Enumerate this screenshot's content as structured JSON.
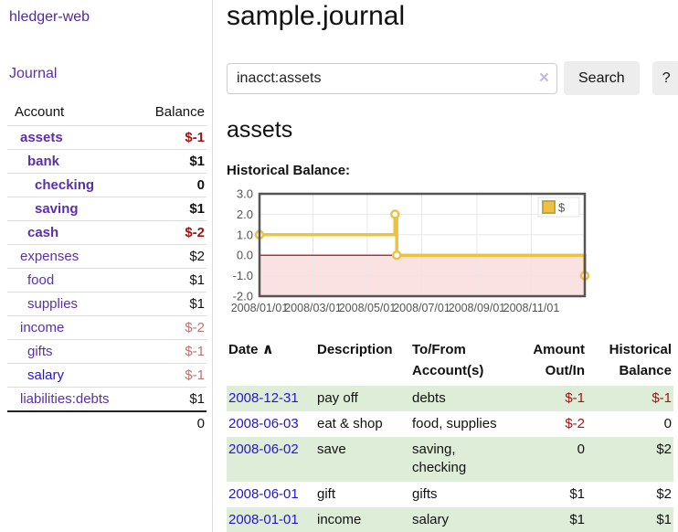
{
  "app": {
    "brand": "hledger-web"
  },
  "sidebar": {
    "journal_link": "Journal",
    "accounts": {
      "header_account": "Account",
      "header_balance": "Balance",
      "rows": [
        {
          "name": "assets",
          "balance": "$-1"
        },
        {
          "name": "bank",
          "balance": "$1"
        },
        {
          "name": "checking",
          "balance": "0"
        },
        {
          "name": "saving",
          "balance": "$1"
        },
        {
          "name": "cash",
          "balance": "$-2"
        },
        {
          "name": "expenses",
          "balance": "$2"
        },
        {
          "name": "food",
          "balance": "$1"
        },
        {
          "name": "supplies",
          "balance": "$1"
        },
        {
          "name": "income",
          "balance": "$-2"
        },
        {
          "name": "gifts",
          "balance": "$-1"
        },
        {
          "name": "salary",
          "balance": "$-1"
        },
        {
          "name": "liabilities:debts",
          "balance": "$1"
        }
      ],
      "total": "0"
    }
  },
  "main": {
    "title": "sample.journal",
    "search": {
      "value": "inacct:assets",
      "clear_icon": "×",
      "search_button": "Search",
      "help_button": "?"
    },
    "account_heading": "assets",
    "chart_heading": "Historical Balance:"
  },
  "chart_data": {
    "type": "line",
    "title": "Historical Balance",
    "step": true,
    "series": [
      {
        "name": "$",
        "color": "#edc240",
        "points": [
          {
            "date": "2008-01-01",
            "x_days": 0,
            "y": 1
          },
          {
            "date": "2008-06-01",
            "x_days": 152,
            "y": 2
          },
          {
            "date": "2008-06-03",
            "x_days": 154,
            "y": 0
          },
          {
            "date": "2008-12-31",
            "x_days": 365,
            "y": -1
          }
        ]
      }
    ],
    "x_range_days": [
      0,
      365
    ],
    "ylim": [
      -2,
      3
    ],
    "y_ticks": [
      "3.0",
      "2.0",
      "1.0",
      "0.0",
      "-1.0",
      "-2.0"
    ],
    "x_ticks": [
      {
        "label": "2008/01/01",
        "x_days": 0
      },
      {
        "label": "2008/03/01",
        "x_days": 60
      },
      {
        "label": "2008/05/01",
        "x_days": 121
      },
      {
        "label": "2008/07/01",
        "x_days": 182
      },
      {
        "label": "2008/09/01",
        "x_days": 244
      },
      {
        "label": "2008/11/01",
        "x_days": 305
      }
    ],
    "legend": {
      "label": "$",
      "swatch_color": "#edc240",
      "position": "top-right"
    },
    "grid": true,
    "colors": {
      "border": "#545454",
      "grid": "#e7e7e7",
      "negative_region": "#fae2e3",
      "zero_line": "#8b0000",
      "tick_text": "#545454"
    }
  },
  "transactions": {
    "sort_icon": "∧",
    "headers": {
      "date": "Date",
      "description": "Description",
      "accounts": "To/From Account(s)",
      "amount": "Amount Out/In",
      "balance": "Historical Balance"
    },
    "rows": [
      {
        "date": "2008-12-31",
        "description": "pay off",
        "accounts": "debts",
        "amount": "$-1",
        "balance": "$-1"
      },
      {
        "date": "2008-06-03",
        "description": "eat & shop",
        "accounts": "food, supplies",
        "amount": "$-2",
        "balance": "0"
      },
      {
        "date": "2008-06-02",
        "description": "save",
        "accounts": "saving, checking",
        "amount": "0",
        "balance": "$2"
      },
      {
        "date": "2008-06-01",
        "description": "gift",
        "accounts": "gifts",
        "amount": "$1",
        "balance": "$2"
      },
      {
        "date": "2008-01-01",
        "description": "income",
        "accounts": "salary",
        "amount": "$1",
        "balance": "$1"
      }
    ]
  }
}
